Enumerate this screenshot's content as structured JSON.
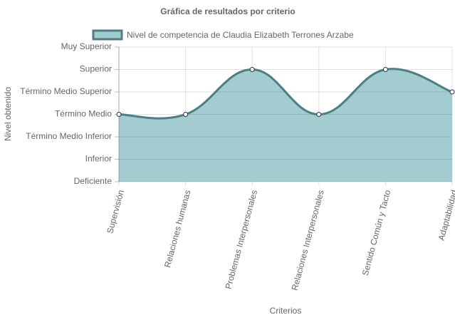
{
  "chart_data": {
    "type": "line",
    "title": "Gráfica de resultados por criterio",
    "y_label": "Nivel obtenido",
    "x_label": "Criterios",
    "categories": [
      "Supervisión",
      "Relaciones humanas",
      "Problemas Interpersonales",
      "Relaciones Interpersonales",
      "Sentido Común y Tacto",
      "Adaptabilidad"
    ],
    "series": [
      {
        "name": "Nivel de competencia de Claudia Elizabeth Terrones Arzabe",
        "color": "#4f7d83",
        "fill": "#a2ccd0",
        "values": [
          4,
          4,
          6,
          4,
          6,
          5
        ]
      }
    ],
    "ylim": [
      1,
      7
    ],
    "yticks": [
      {
        "value": 1,
        "label": "Deficiente"
      },
      {
        "value": 2,
        "label": "Inferior"
      },
      {
        "value": 3,
        "label": "Término Medio Inferior"
      },
      {
        "value": 4,
        "label": "Término Medio"
      },
      {
        "value": 5,
        "label": "Término Medio Superior"
      },
      {
        "value": 6,
        "label": "Superior"
      },
      {
        "value": 7,
        "label": "Muy Superior"
      }
    ],
    "grid": true,
    "legend": "top"
  }
}
